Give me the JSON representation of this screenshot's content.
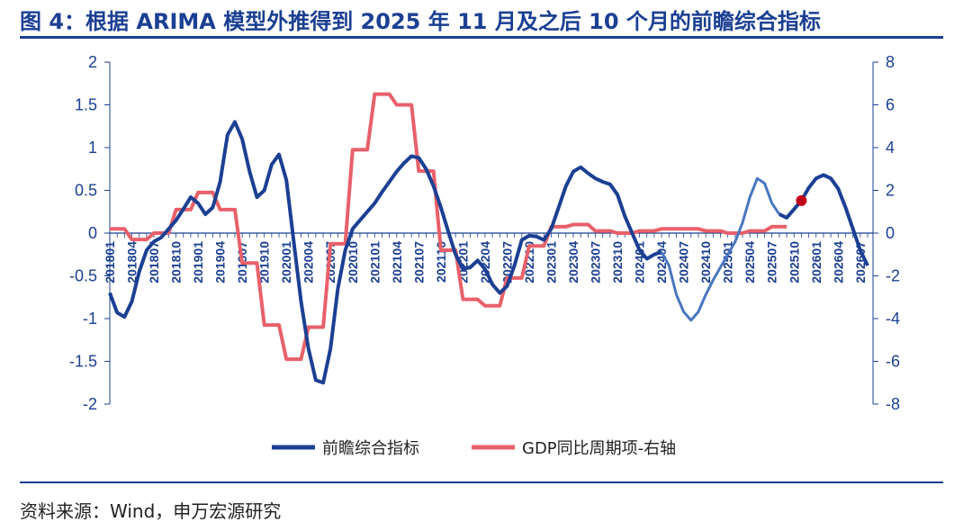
{
  "header": {
    "title": "图 4：根据 ARIMA 模型外推得到 2025 年 11 月及之后 10 个月的前瞻综合指标"
  },
  "footer": {
    "source": "资料来源：Wind，申万宏源研究"
  },
  "chart_data": {
    "type": "line",
    "title": "图 4：根据 ARIMA 模型外推得到 2025 年 11 月及之后 10 个月的前瞻综合指标",
    "x_start": "201801",
    "x_tick_labels": [
      "201801",
      "201804",
      "201807",
      "201810",
      "201901",
      "201904",
      "201907",
      "201910",
      "202001",
      "202004",
      "202007",
      "202010",
      "202101",
      "202104",
      "202107",
      "202110",
      "202201",
      "202204",
      "202207",
      "202210",
      "202301",
      "202304",
      "202307",
      "202310",
      "202401",
      "202404",
      "202407",
      "202410",
      "202501",
      "202504",
      "202507",
      "202510",
      "202601",
      "202604",
      "202607"
    ],
    "left_ylim": [
      -2,
      2
    ],
    "left_yticks": [
      2,
      1.5,
      1,
      0.5,
      0,
      -0.5,
      -1,
      -1.5,
      -2
    ],
    "right_ylim": [
      -8,
      8
    ],
    "right_yticks": [
      8,
      6,
      4,
      2,
      0,
      -2,
      -4,
      -6,
      -8
    ],
    "legend_position": "bottom",
    "colors": {
      "primary": "#1b3f93",
      "secondary": "#e8606a",
      "extrapolated": "#4a76c0",
      "marker": "#c0001a"
    },
    "highlight_point": {
      "x": "202511",
      "y": 0.38
    },
    "series": [
      {
        "name": "前瞻综合指标",
        "axis": "left",
        "start": "201801",
        "end": "202608",
        "values": [
          -0.7,
          -0.93,
          -0.98,
          -0.8,
          -0.45,
          -0.2,
          -0.1,
          -0.05,
          0.05,
          0.15,
          0.28,
          0.42,
          0.35,
          0.22,
          0.3,
          0.6,
          1.15,
          1.3,
          1.1,
          0.72,
          0.42,
          0.5,
          0.8,
          0.92,
          0.62,
          -0.1,
          -0.8,
          -1.35,
          -1.72,
          -1.75,
          -1.35,
          -0.65,
          -0.2,
          0.05,
          0.15,
          0.25,
          0.35,
          0.48,
          0.6,
          0.72,
          0.82,
          0.9,
          0.88,
          0.75,
          0.55,
          0.3,
          0.02,
          -0.25,
          -0.42,
          -0.4,
          -0.32,
          -0.42,
          -0.6,
          -0.7,
          -0.62,
          -0.38,
          -0.08,
          -0.03,
          -0.04,
          -0.08,
          0.05,
          0.3,
          0.55,
          0.72,
          0.77,
          0.7,
          0.64,
          0.6,
          0.57,
          0.45,
          0.2,
          0.0,
          -0.2,
          -0.3,
          -0.25,
          -0.22,
          -0.38,
          -0.72,
          -0.92,
          -1.02,
          -0.92,
          -0.72,
          -0.55,
          -0.4,
          -0.25,
          -0.1,
          0.12,
          0.42,
          0.64,
          0.58,
          0.35,
          0.22,
          0.18,
          0.28,
          0.38,
          0.53,
          0.64,
          0.68,
          0.64,
          0.52,
          0.3,
          0.05,
          -0.2,
          -0.38
        ]
      },
      {
        "name": "GDP同比周期项-右轴",
        "axis": "right",
        "start": "201801",
        "end": "202509",
        "values": [
          0.2,
          0.2,
          0.2,
          -0.3,
          -0.3,
          -0.3,
          0.0,
          0.0,
          0.0,
          1.1,
          1.1,
          1.1,
          1.9,
          1.9,
          1.9,
          1.1,
          1.1,
          1.1,
          -1.4,
          -1.4,
          -1.4,
          -4.3,
          -4.3,
          -4.3,
          -5.9,
          -5.9,
          -5.9,
          -4.4,
          -4.4,
          -4.4,
          -0.5,
          -0.5,
          -0.5,
          3.9,
          3.9,
          3.9,
          6.5,
          6.5,
          6.5,
          6.0,
          6.0,
          6.0,
          2.9,
          2.9,
          2.9,
          -0.8,
          -0.8,
          -0.8,
          -3.1,
          -3.1,
          -3.1,
          -3.4,
          -3.4,
          -3.4,
          -2.1,
          -2.1,
          -2.1,
          -0.6,
          -0.6,
          -0.6,
          0.3,
          0.3,
          0.3,
          0.4,
          0.4,
          0.4,
          0.1,
          0.1,
          0.1,
          0.0,
          0.0,
          0.0,
          0.1,
          0.1,
          0.1,
          0.2,
          0.2,
          0.2,
          0.2,
          0.2,
          0.2,
          0.1,
          0.1,
          0.1,
          0.0,
          0.0,
          0.0,
          0.1,
          0.1,
          0.1,
          0.3,
          0.3,
          0.3
        ]
      }
    ]
  }
}
